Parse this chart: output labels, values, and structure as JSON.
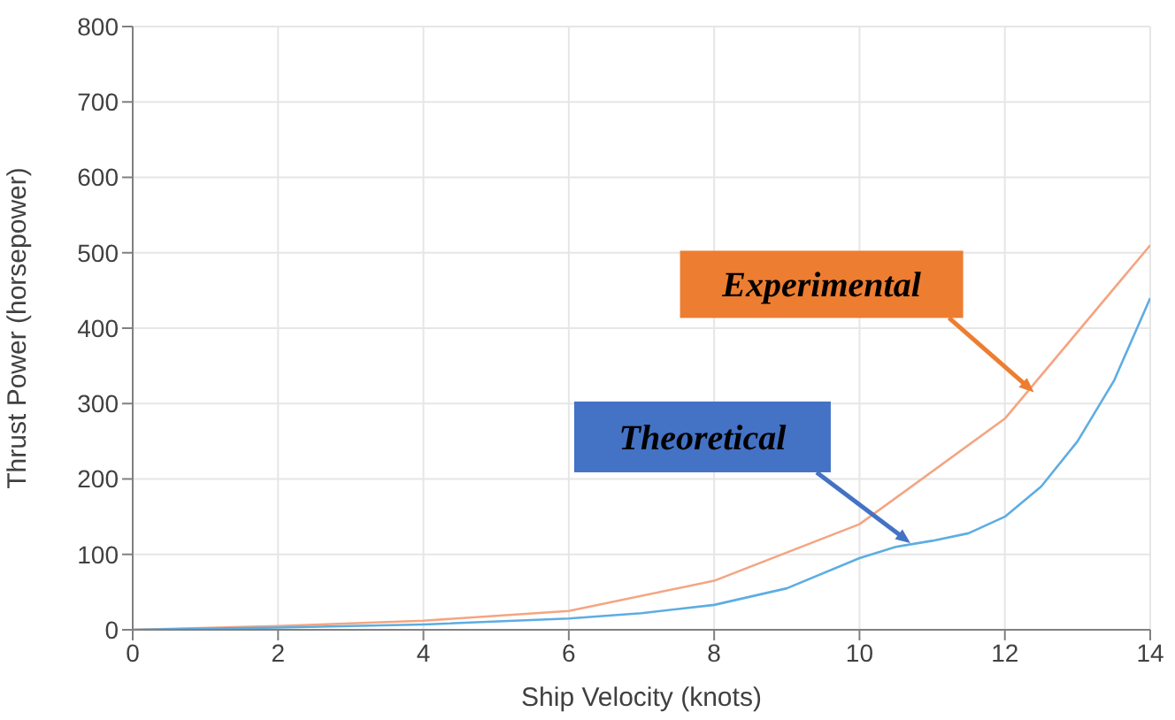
{
  "chart_data": {
    "type": "line",
    "xlabel": "Ship Velocity (knots)",
    "ylabel": "Thrust Power (horsepower)",
    "xlim": [
      0,
      14
    ],
    "xticks": [
      0,
      2,
      4,
      6,
      8,
      10,
      12,
      14
    ],
    "ylim": [
      0,
      800
    ],
    "yticks": [
      0,
      100,
      200,
      300,
      400,
      500,
      600,
      700,
      800
    ],
    "grid": true,
    "legend": false,
    "marker": "none",
    "line_style": "solid",
    "series": [
      {
        "color": "#f4a582",
        "x": [
          0,
          2,
          4,
          6,
          8,
          10,
          12,
          14
        ],
        "values": [
          0,
          5,
          12,
          25,
          65,
          140,
          280,
          510
        ]
      },
      {
        "color": "#5dade2",
        "x": [
          0,
          2,
          4,
          6,
          7,
          8,
          9,
          10,
          10.5,
          11,
          11.5,
          12,
          12.5,
          13,
          13.5,
          14
        ],
        "values": [
          0,
          3,
          7,
          15,
          22,
          33,
          55,
          95,
          110,
          118,
          128,
          150,
          190,
          250,
          330,
          440
        ]
      }
    ],
    "annotations": [
      {
        "text": "Experimental",
        "x": 12.4,
        "y": 315
      },
      {
        "text": "Theoretical",
        "x": 10.7,
        "y": 115
      }
    ]
  }
}
